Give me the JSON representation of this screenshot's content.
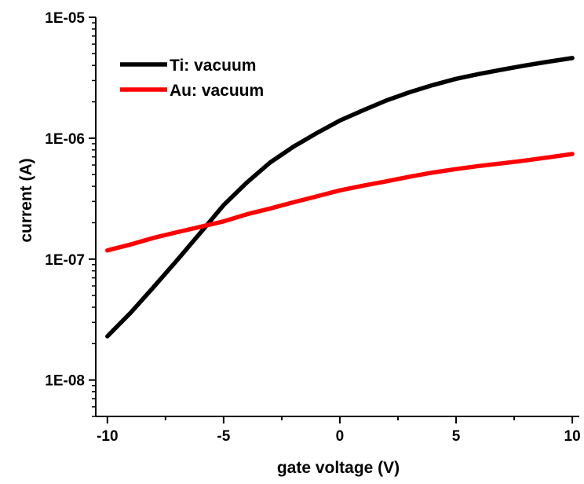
{
  "chart_data": {
    "type": "line",
    "title": "",
    "xlabel": "gate voltage (V)",
    "ylabel": "current (A)",
    "xlim": [
      -10.5,
      10.3
    ],
    "ylim": [
      5e-09,
      1e-05
    ],
    "yscale": "log",
    "x_ticks": [
      -10,
      -5,
      0,
      5,
      10
    ],
    "x_tick_labels": [
      "-10",
      "-5",
      "0",
      "5",
      "10"
    ],
    "y_ticks": [
      1e-08,
      1e-07,
      1e-06,
      1e-05
    ],
    "y_tick_labels": [
      "1E-08",
      "1E-07",
      "1E-06",
      "1E-05"
    ],
    "grid": false,
    "legend": "top-left",
    "series": [
      {
        "name": "Ti: vacuum",
        "color": "#000000",
        "x": [
          -10,
          -9,
          -8,
          -7,
          -6,
          -5,
          -4,
          -3,
          -2,
          -1,
          0,
          1,
          2,
          3,
          4,
          5,
          6,
          7,
          8,
          9,
          10
        ],
        "y": [
          2.3e-08,
          3.6e-08,
          5.9e-08,
          9.8e-08,
          1.65e-07,
          2.8e-07,
          4.3e-07,
          6.3e-07,
          8.5e-07,
          1.1e-06,
          1.4e-06,
          1.7e-06,
          2.05e-06,
          2.4e-06,
          2.75e-06,
          3.1e-06,
          3.4e-06,
          3.7e-06,
          4e-06,
          4.3e-06,
          4.6e-06
        ]
      },
      {
        "name": "Au: vacuum",
        "color": "#ff0000",
        "x": [
          -10,
          -9,
          -8,
          -7,
          -6,
          -5,
          -4,
          -3,
          -2,
          -1,
          0,
          1,
          2,
          3,
          4,
          5,
          6,
          7,
          8,
          9,
          10
        ],
        "y": [
          1.18e-07,
          1.32e-07,
          1.5e-07,
          1.67e-07,
          1.85e-07,
          2.05e-07,
          2.35e-07,
          2.62e-07,
          2.95e-07,
          3.3e-07,
          3.7e-07,
          4.05e-07,
          4.4e-07,
          4.8e-07,
          5.2e-07,
          5.55e-07,
          5.9e-07,
          6.2e-07,
          6.55e-07,
          6.95e-07,
          7.4e-07
        ]
      }
    ]
  }
}
